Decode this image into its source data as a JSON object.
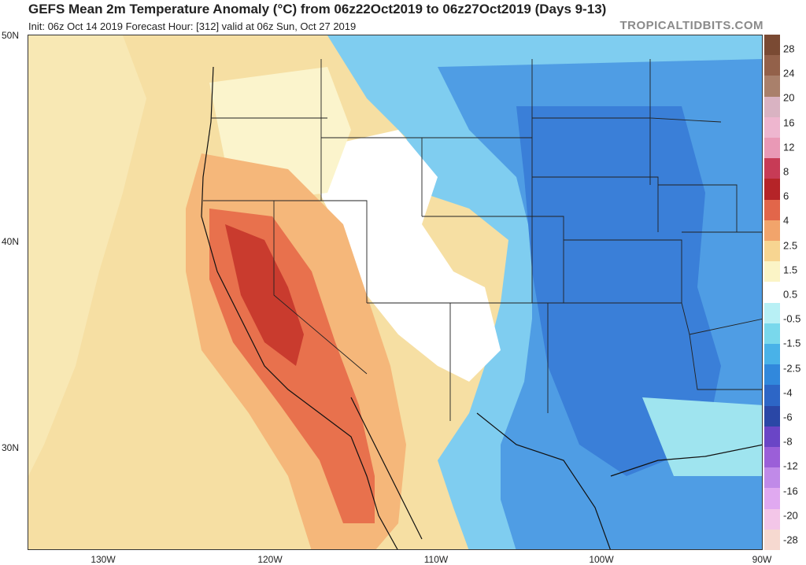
{
  "header": {
    "title": "GEFS Mean 2m Temperature Anomaly (°C) from 06z22Oct2019 to 06z27Oct2019 (Days 9-13)",
    "subtitle": "Init: 06z Oct 14 2019   Forecast Hour: [312]   valid at 06z Sun, Oct 27 2019",
    "brand": "TROPICALTIDBITS.COM"
  },
  "axes": {
    "lat_labels": [
      "50N",
      "40N",
      "30N"
    ],
    "lon_labels": [
      "130W",
      "120W",
      "110W",
      "100W",
      "90W"
    ]
  },
  "colorbar": {
    "labels": [
      "28",
      "24",
      "20",
      "16",
      "12",
      "8",
      "6",
      "4",
      "2.5",
      "1.5",
      "0.5",
      "-0.5",
      "-1.5",
      "-2.5",
      "-4",
      "-6",
      "-8",
      "-12",
      "-16",
      "-20",
      "-28"
    ],
    "colors": [
      "#7a4a33",
      "#93614a",
      "#a9806b",
      "#d9b3c2",
      "#eeb6cf",
      "#e999b6",
      "#c73b56",
      "#b52428",
      "#e2664a",
      "#f2a46b",
      "#f7d591",
      "#fbf4c6",
      "#ffffff",
      "#b8f0f5",
      "#79d8ec",
      "#49b2e8",
      "#3188dc",
      "#2d66c6",
      "#2a47a6",
      "#6a45c6",
      "#9b5fd8",
      "#c08ae8",
      "#e0a9f0",
      "#f3c6e8",
      "#f6d9d0"
    ]
  },
  "colors": {
    "land_warm_strong": "#c93b2e",
    "land_warm": "#e8714d",
    "land_mild": "#f5b77a",
    "neutral": "#ffffff",
    "cool": "#7fdcec",
    "cold": "#3e88dd",
    "cold_strong": "#2f6fcf"
  }
}
